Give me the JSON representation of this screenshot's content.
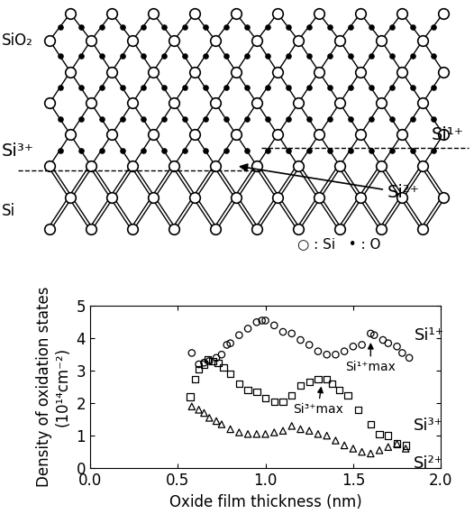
{
  "chart_data": {
    "type": "scatter",
    "x_label": "Oxide film thickness (nm)",
    "y_label": "Density of oxidation states\n(10¹⁴cm⁻²)",
    "xlim": [
      0,
      2.0
    ],
    "xticks": [
      {
        "value": 0,
        "label": "0.0"
      },
      {
        "value": 0.5,
        "label": "0.5"
      },
      {
        "value": 1.0,
        "label": "1.0"
      },
      {
        "value": 1.5,
        "label": "1.5"
      },
      {
        "value": 2.0,
        "label": "2.0"
      }
    ],
    "ylim": [
      0,
      5
    ],
    "yticks": [
      0,
      1,
      2,
      3,
      4,
      5
    ],
    "grid": false,
    "series": [
      {
        "name": "Si¹⁺",
        "marker": "circle",
        "color": "#000000",
        "x": [
          0.58,
          0.62,
          0.65,
          0.68,
          0.72,
          0.75,
          0.78,
          0.8,
          0.85,
          0.9,
          0.95,
          0.98,
          1.0,
          1.05,
          1.1,
          1.15,
          1.2,
          1.25,
          1.3,
          1.35,
          1.4,
          1.45,
          1.5,
          1.55,
          1.6,
          1.62,
          1.67,
          1.7,
          1.75,
          1.78,
          1.82
        ],
        "values": [
          3.55,
          3.2,
          3.25,
          3.3,
          3.4,
          3.5,
          3.8,
          3.85,
          4.1,
          4.3,
          4.5,
          4.55,
          4.55,
          4.4,
          4.2,
          4.15,
          3.95,
          3.8,
          3.6,
          3.5,
          3.5,
          3.6,
          3.75,
          3.8,
          4.15,
          4.1,
          3.95,
          3.85,
          3.75,
          3.55,
          3.4
        ]
      },
      {
        "name": "Si³⁺",
        "marker": "square",
        "color": "#000000",
        "x": [
          0.57,
          0.6,
          0.62,
          0.65,
          0.67,
          0.7,
          0.73,
          0.76,
          0.8,
          0.85,
          0.9,
          0.95,
          1.0,
          1.05,
          1.1,
          1.15,
          1.2,
          1.25,
          1.3,
          1.35,
          1.38,
          1.42,
          1.47,
          1.53,
          1.6,
          1.65,
          1.7,
          1.75,
          1.8
        ],
        "values": [
          2.2,
          2.75,
          3.05,
          3.2,
          3.35,
          3.3,
          3.25,
          3.1,
          2.9,
          2.6,
          2.4,
          2.35,
          2.15,
          2.05,
          2.05,
          2.25,
          2.55,
          2.65,
          2.75,
          2.75,
          2.6,
          2.4,
          2.25,
          1.8,
          1.35,
          1.05,
          1.0,
          0.75,
          0.7
        ]
      },
      {
        "name": "Si²⁺",
        "marker": "triangle",
        "color": "#000000",
        "x": [
          0.58,
          0.62,
          0.65,
          0.68,
          0.72,
          0.75,
          0.8,
          0.85,
          0.9,
          0.95,
          1.0,
          1.05,
          1.1,
          1.15,
          1.2,
          1.25,
          1.3,
          1.35,
          1.4,
          1.45,
          1.5,
          1.55,
          1.6,
          1.65,
          1.7,
          1.75,
          1.8
        ],
        "values": [
          1.9,
          1.8,
          1.7,
          1.55,
          1.45,
          1.35,
          1.2,
          1.1,
          1.05,
          1.05,
          1.05,
          1.1,
          1.15,
          1.3,
          1.2,
          1.15,
          1.05,
          1.0,
          0.85,
          0.7,
          0.6,
          0.5,
          0.45,
          0.55,
          0.65,
          0.75,
          0.6
        ]
      }
    ],
    "annotations": [
      {
        "text": "Si¹⁺max",
        "x": 1.6,
        "y": 3.95,
        "text_x": 1.6,
        "text_y": 3.3
      },
      {
        "text": "Si³⁺max",
        "x": 1.32,
        "y": 2.6,
        "text_x": 1.3,
        "text_y": 2.0
      }
    ]
  },
  "diagram": {
    "layers": {
      "top": "SiO₂",
      "bottom": "Si"
    },
    "interface": {
      "left": "Si³⁺",
      "right": "Si¹⁺",
      "arrow": "Si²⁺"
    },
    "key": [
      "○ : Si",
      "• : O"
    ]
  }
}
